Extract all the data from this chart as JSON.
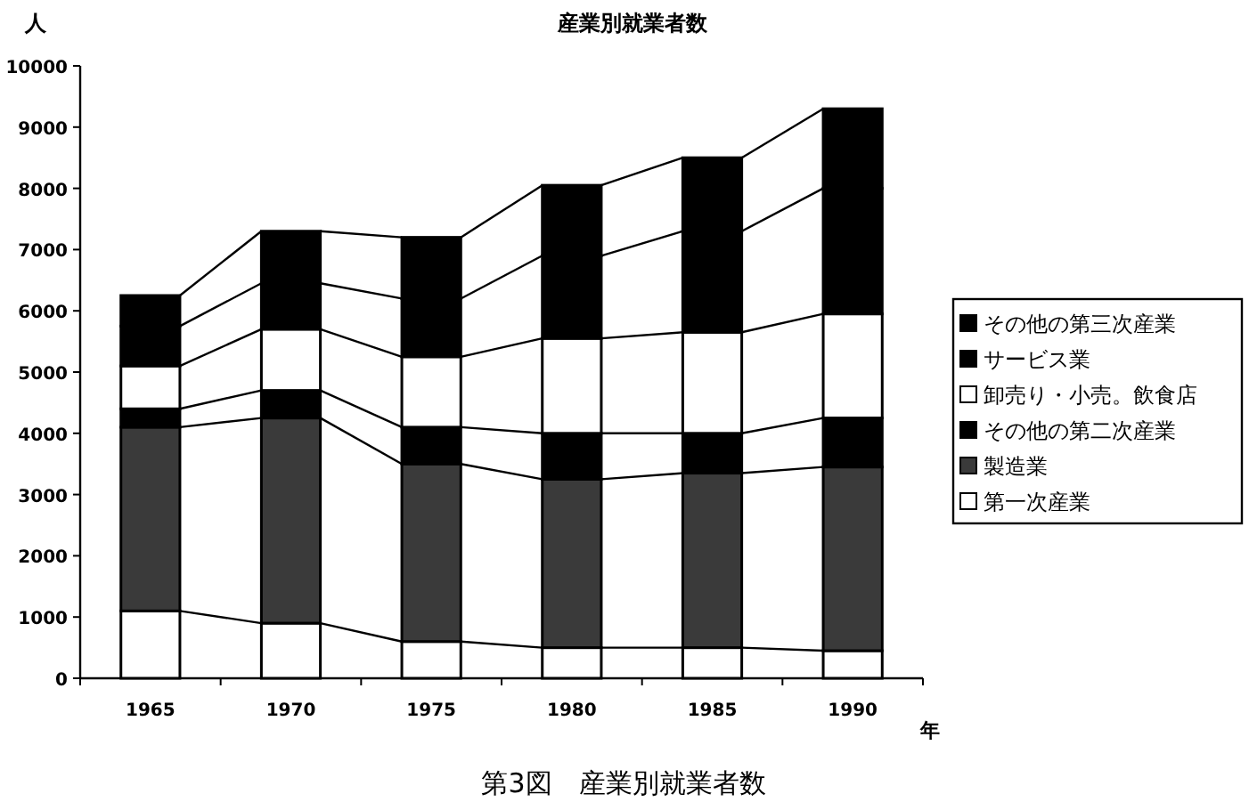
{
  "chart_data": {
    "type": "bar",
    "stacked": true,
    "title": "産業別就業者数",
    "ylabel": "人",
    "xlabel": "年",
    "categories": [
      "1965",
      "1970",
      "1975",
      "1980",
      "1985",
      "1990"
    ],
    "series": [
      {
        "name": "第一次産業",
        "color": "#ffffff",
        "values": [
          1100,
          900,
          600,
          500,
          500,
          450
        ]
      },
      {
        "name": "製造業",
        "color": "#3a3a3a",
        "values": [
          3000,
          3350,
          2900,
          2750,
          2850,
          3000
        ]
      },
      {
        "name": "その他の第二次産業",
        "color": "#000000",
        "values": [
          300,
          450,
          600,
          750,
          650,
          800
        ]
      },
      {
        "name": "卸売り・小売。飲食店",
        "color": "#ffffff",
        "values": [
          700,
          1000,
          1150,
          1550,
          1650,
          1700
        ]
      },
      {
        "name": "サービス業",
        "color": "#000000",
        "values": [
          650,
          750,
          950,
          1350,
          1650,
          2050
        ]
      },
      {
        "name": "その他の第三次産業",
        "color": "#000000",
        "values": [
          500,
          850,
          1000,
          1150,
          1200,
          1300
        ]
      }
    ],
    "ylim": [
      0,
      10000
    ],
    "yticks": [
      0,
      1000,
      2000,
      3000,
      4000,
      5000,
      6000,
      7000,
      8000,
      9000,
      10000
    ],
    "grid": false,
    "legend": "right",
    "annotations": [
      "第3図　産業別就業者数"
    ]
  }
}
